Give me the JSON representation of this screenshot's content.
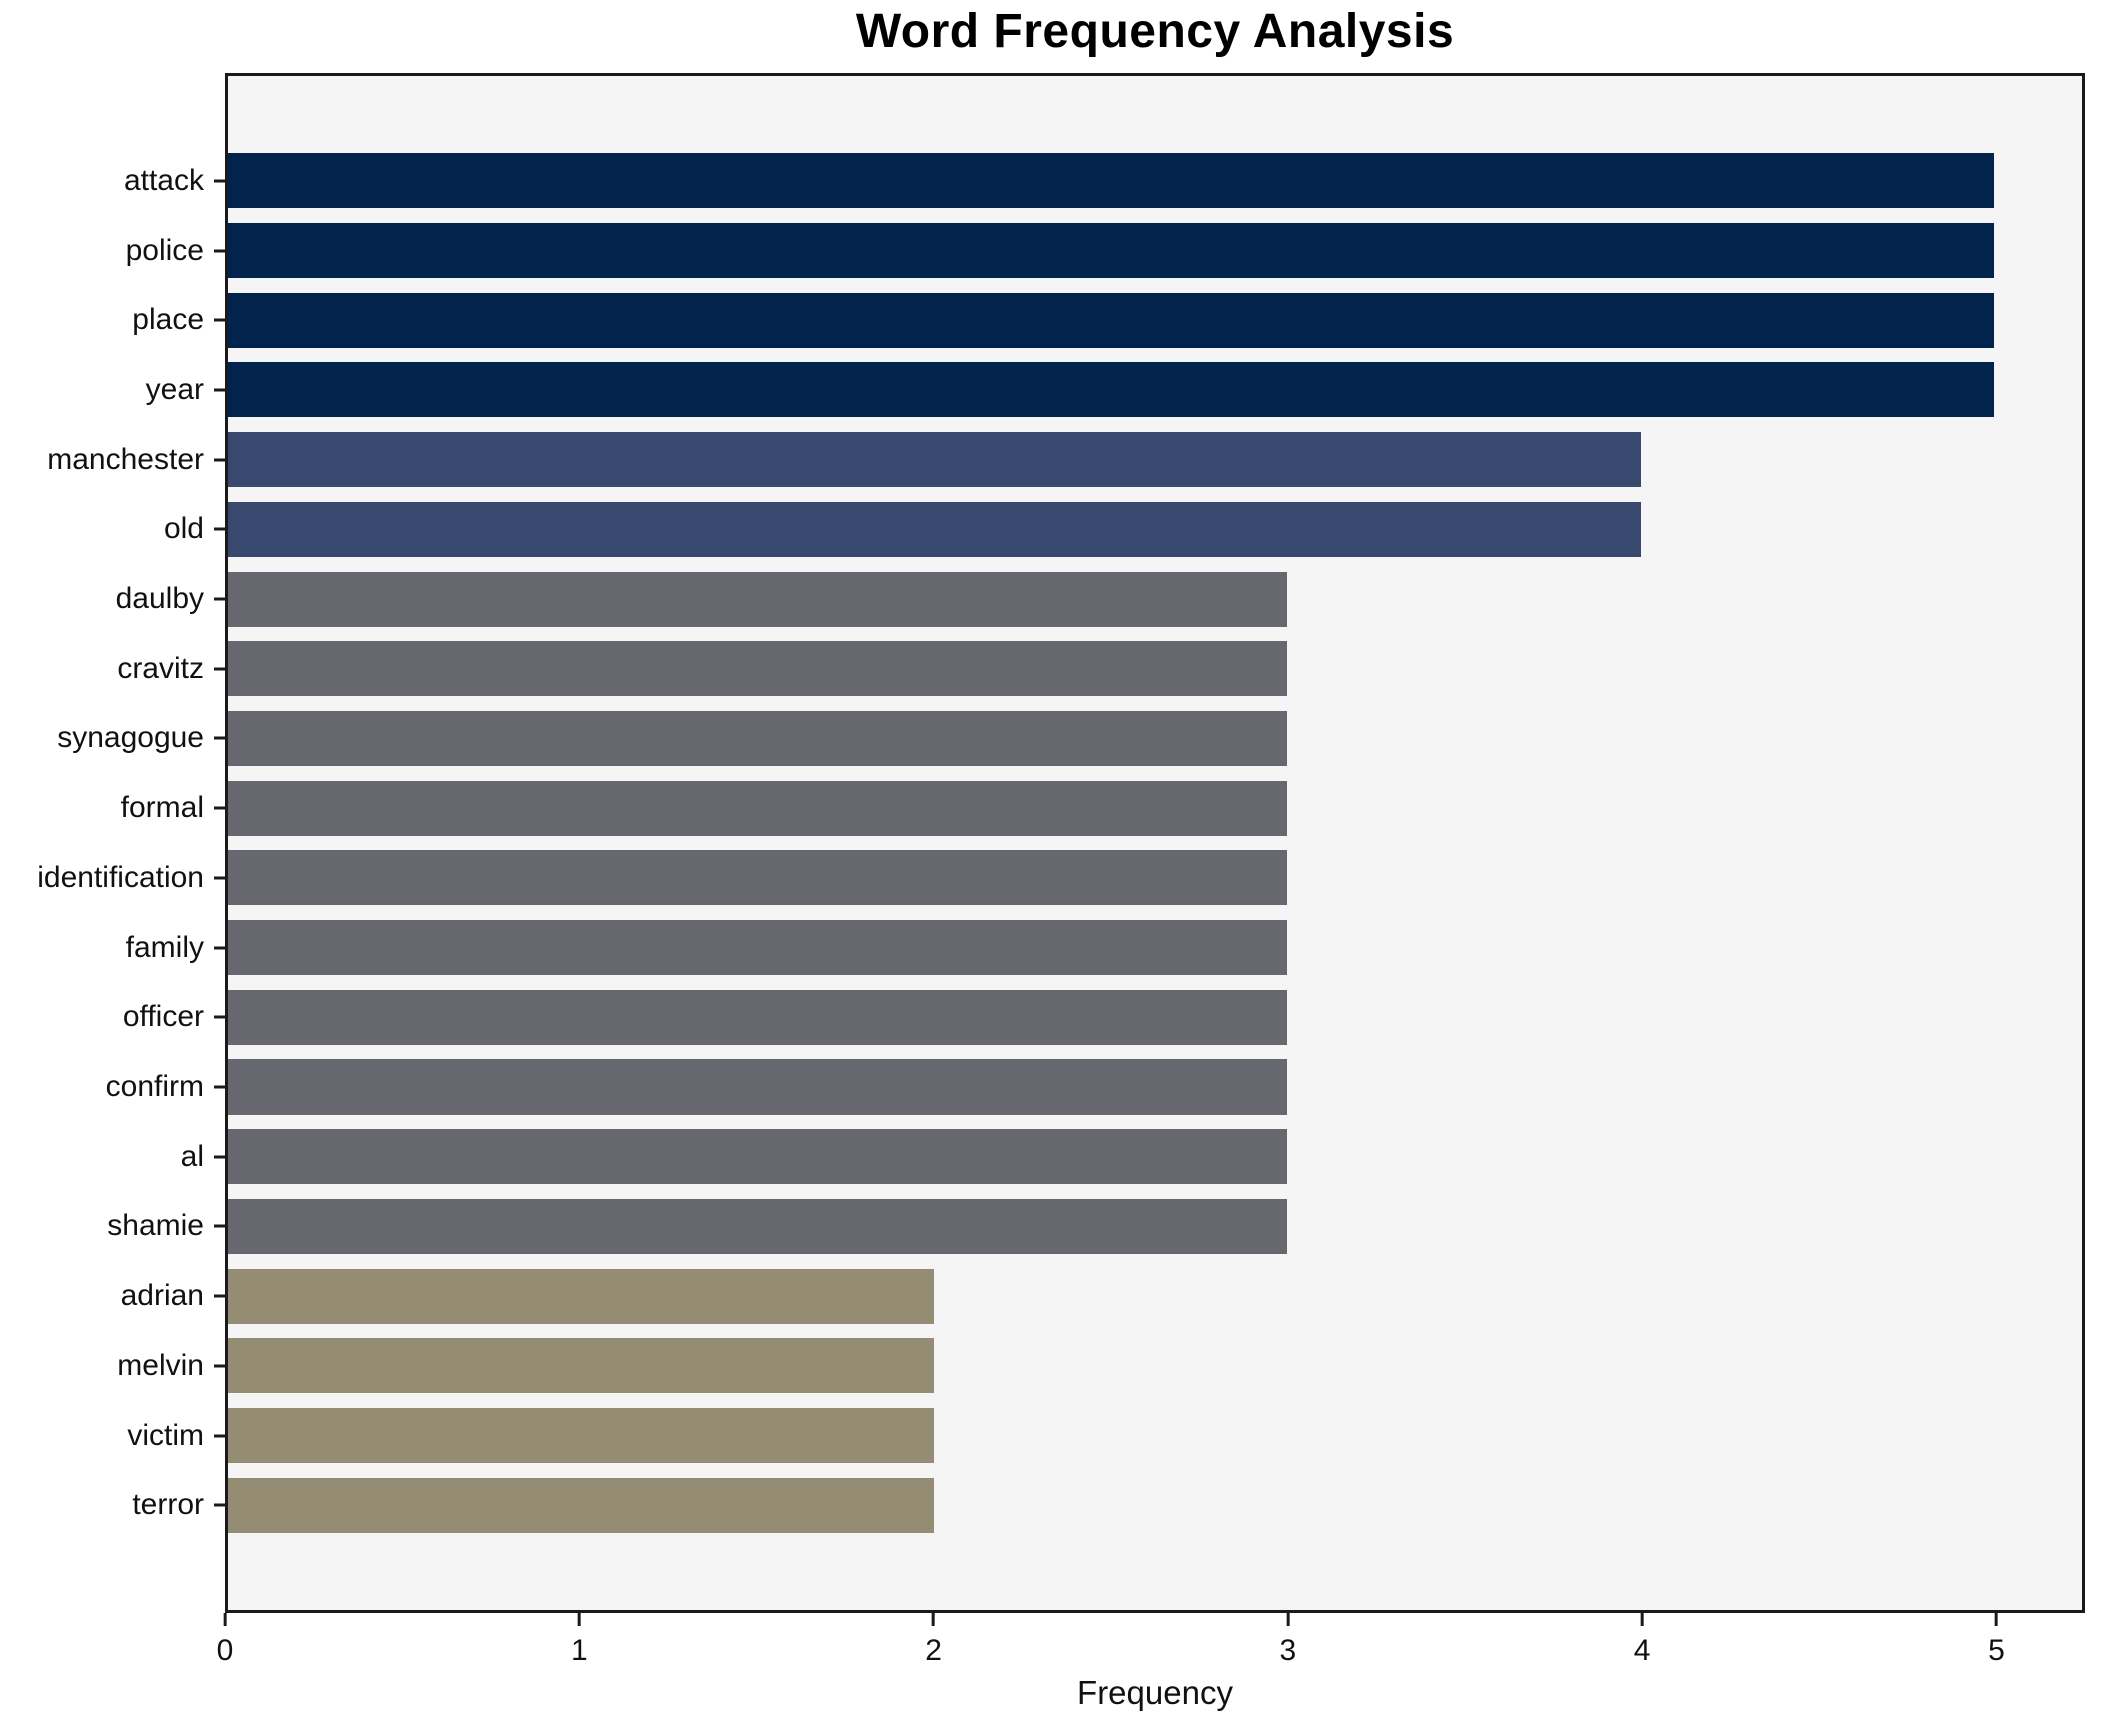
{
  "chart_data": {
    "type": "bar",
    "orientation": "horizontal",
    "title": "Word Frequency Analysis",
    "xlabel": "Frequency",
    "ylabel": "",
    "categories": [
      "attack",
      "police",
      "place",
      "year",
      "manchester",
      "old",
      "daulby",
      "cravitz",
      "synagogue",
      "formal",
      "identification",
      "family",
      "officer",
      "confirm",
      "al",
      "shamie",
      "adrian",
      "melvin",
      "victim",
      "terror"
    ],
    "values": [
      5,
      5,
      5,
      5,
      4,
      4,
      3,
      3,
      3,
      3,
      3,
      3,
      3,
      3,
      3,
      3,
      2,
      2,
      2,
      2
    ],
    "xticks": [
      0,
      1,
      2,
      3,
      4,
      5
    ],
    "xlim": [
      0,
      5.25
    ],
    "grid": false,
    "legend": null,
    "bar_colors_by_value": {
      "5": "#02234c",
      "4": "#38486e",
      "3": "#67676f",
      "2": "#948d74"
    },
    "plot_background": "#f5f5f6",
    "figure_background": "#ffffff",
    "spine_color": "#1a1a1a"
  }
}
